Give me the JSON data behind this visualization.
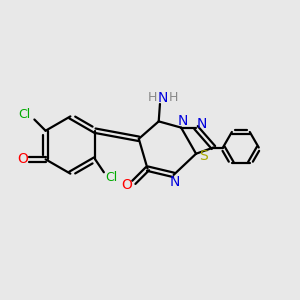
{
  "bg_color": "#e8e8e8",
  "bond_color": "#000000",
  "N_color": "#0000dd",
  "S_color": "#aaaa00",
  "O_color": "#ff0000",
  "Cl_color": "#00aa00",
  "H_color": "#888888",
  "figsize": [
    3.0,
    3.0
  ],
  "dpi": 100,
  "xlim": [
    0,
    12
  ],
  "ylim": [
    0,
    12
  ]
}
